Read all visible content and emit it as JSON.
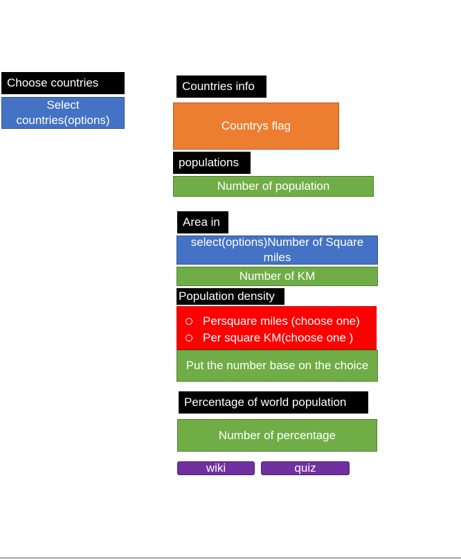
{
  "left_panel": {
    "label": "Choose countries",
    "select_text": "Select countries(options)"
  },
  "main": {
    "countries_info_label": "Countries info",
    "flag_text": "Countrys flag",
    "populations_label": "populations",
    "population_value": "Number of population",
    "area_label": "Area in",
    "area_select": "select(options)Number of Square miles",
    "area_km": "Number of KM",
    "density_label": "Population density",
    "density_options": [
      "Persquare miles (choose one)",
      "Per square KM(choose one   )"
    ],
    "density_value": "Put the number base on the choice",
    "percentage_label": "Percentage of world population",
    "percentage_value": "Number of percentage",
    "buttons": {
      "wiki": "wiki",
      "quiz": "quiz"
    }
  },
  "colors": {
    "label_bg": "#000000",
    "blue": "#4472c4",
    "green": "#70ad47",
    "orange": "#ed7d31",
    "red": "#ff0000",
    "purple": "#7030a0"
  }
}
